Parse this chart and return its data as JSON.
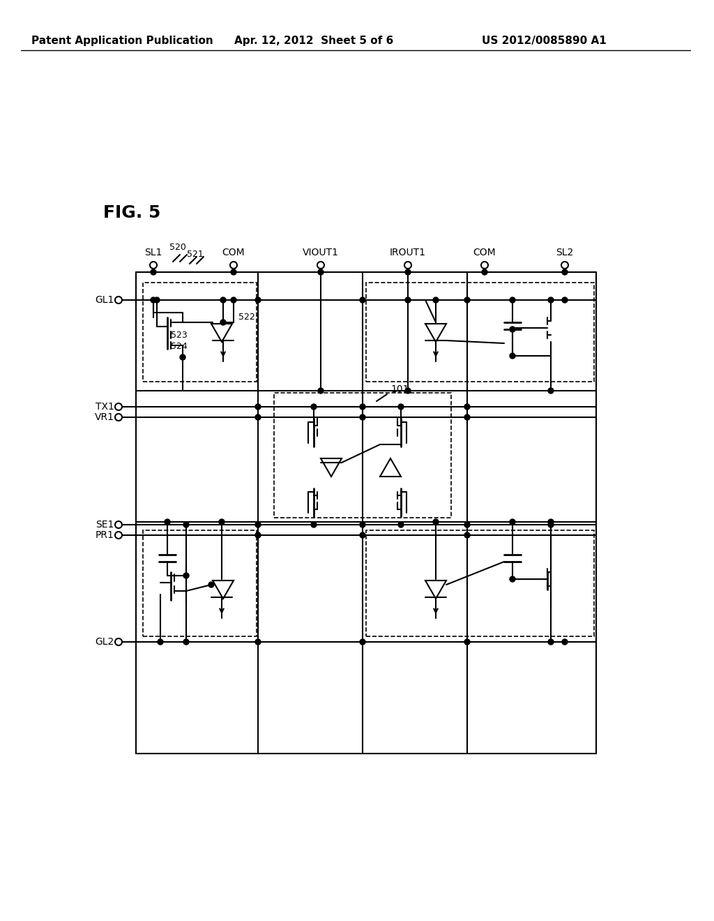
{
  "title": "Patent Application Publication",
  "date": "Apr. 12, 2012",
  "sheet": "Sheet 5 of 6",
  "patent_num": "US 2012/0085890 A1",
  "fig_label": "FIG. 5",
  "background": "#ffffff",
  "line_color": "#000000",
  "dashed_color": "#000000",
  "text_color": "#000000",
  "lw": 1.5,
  "header_fontsize": 11,
  "label_fontsize": 10,
  "fig_label_fontsize": 18
}
